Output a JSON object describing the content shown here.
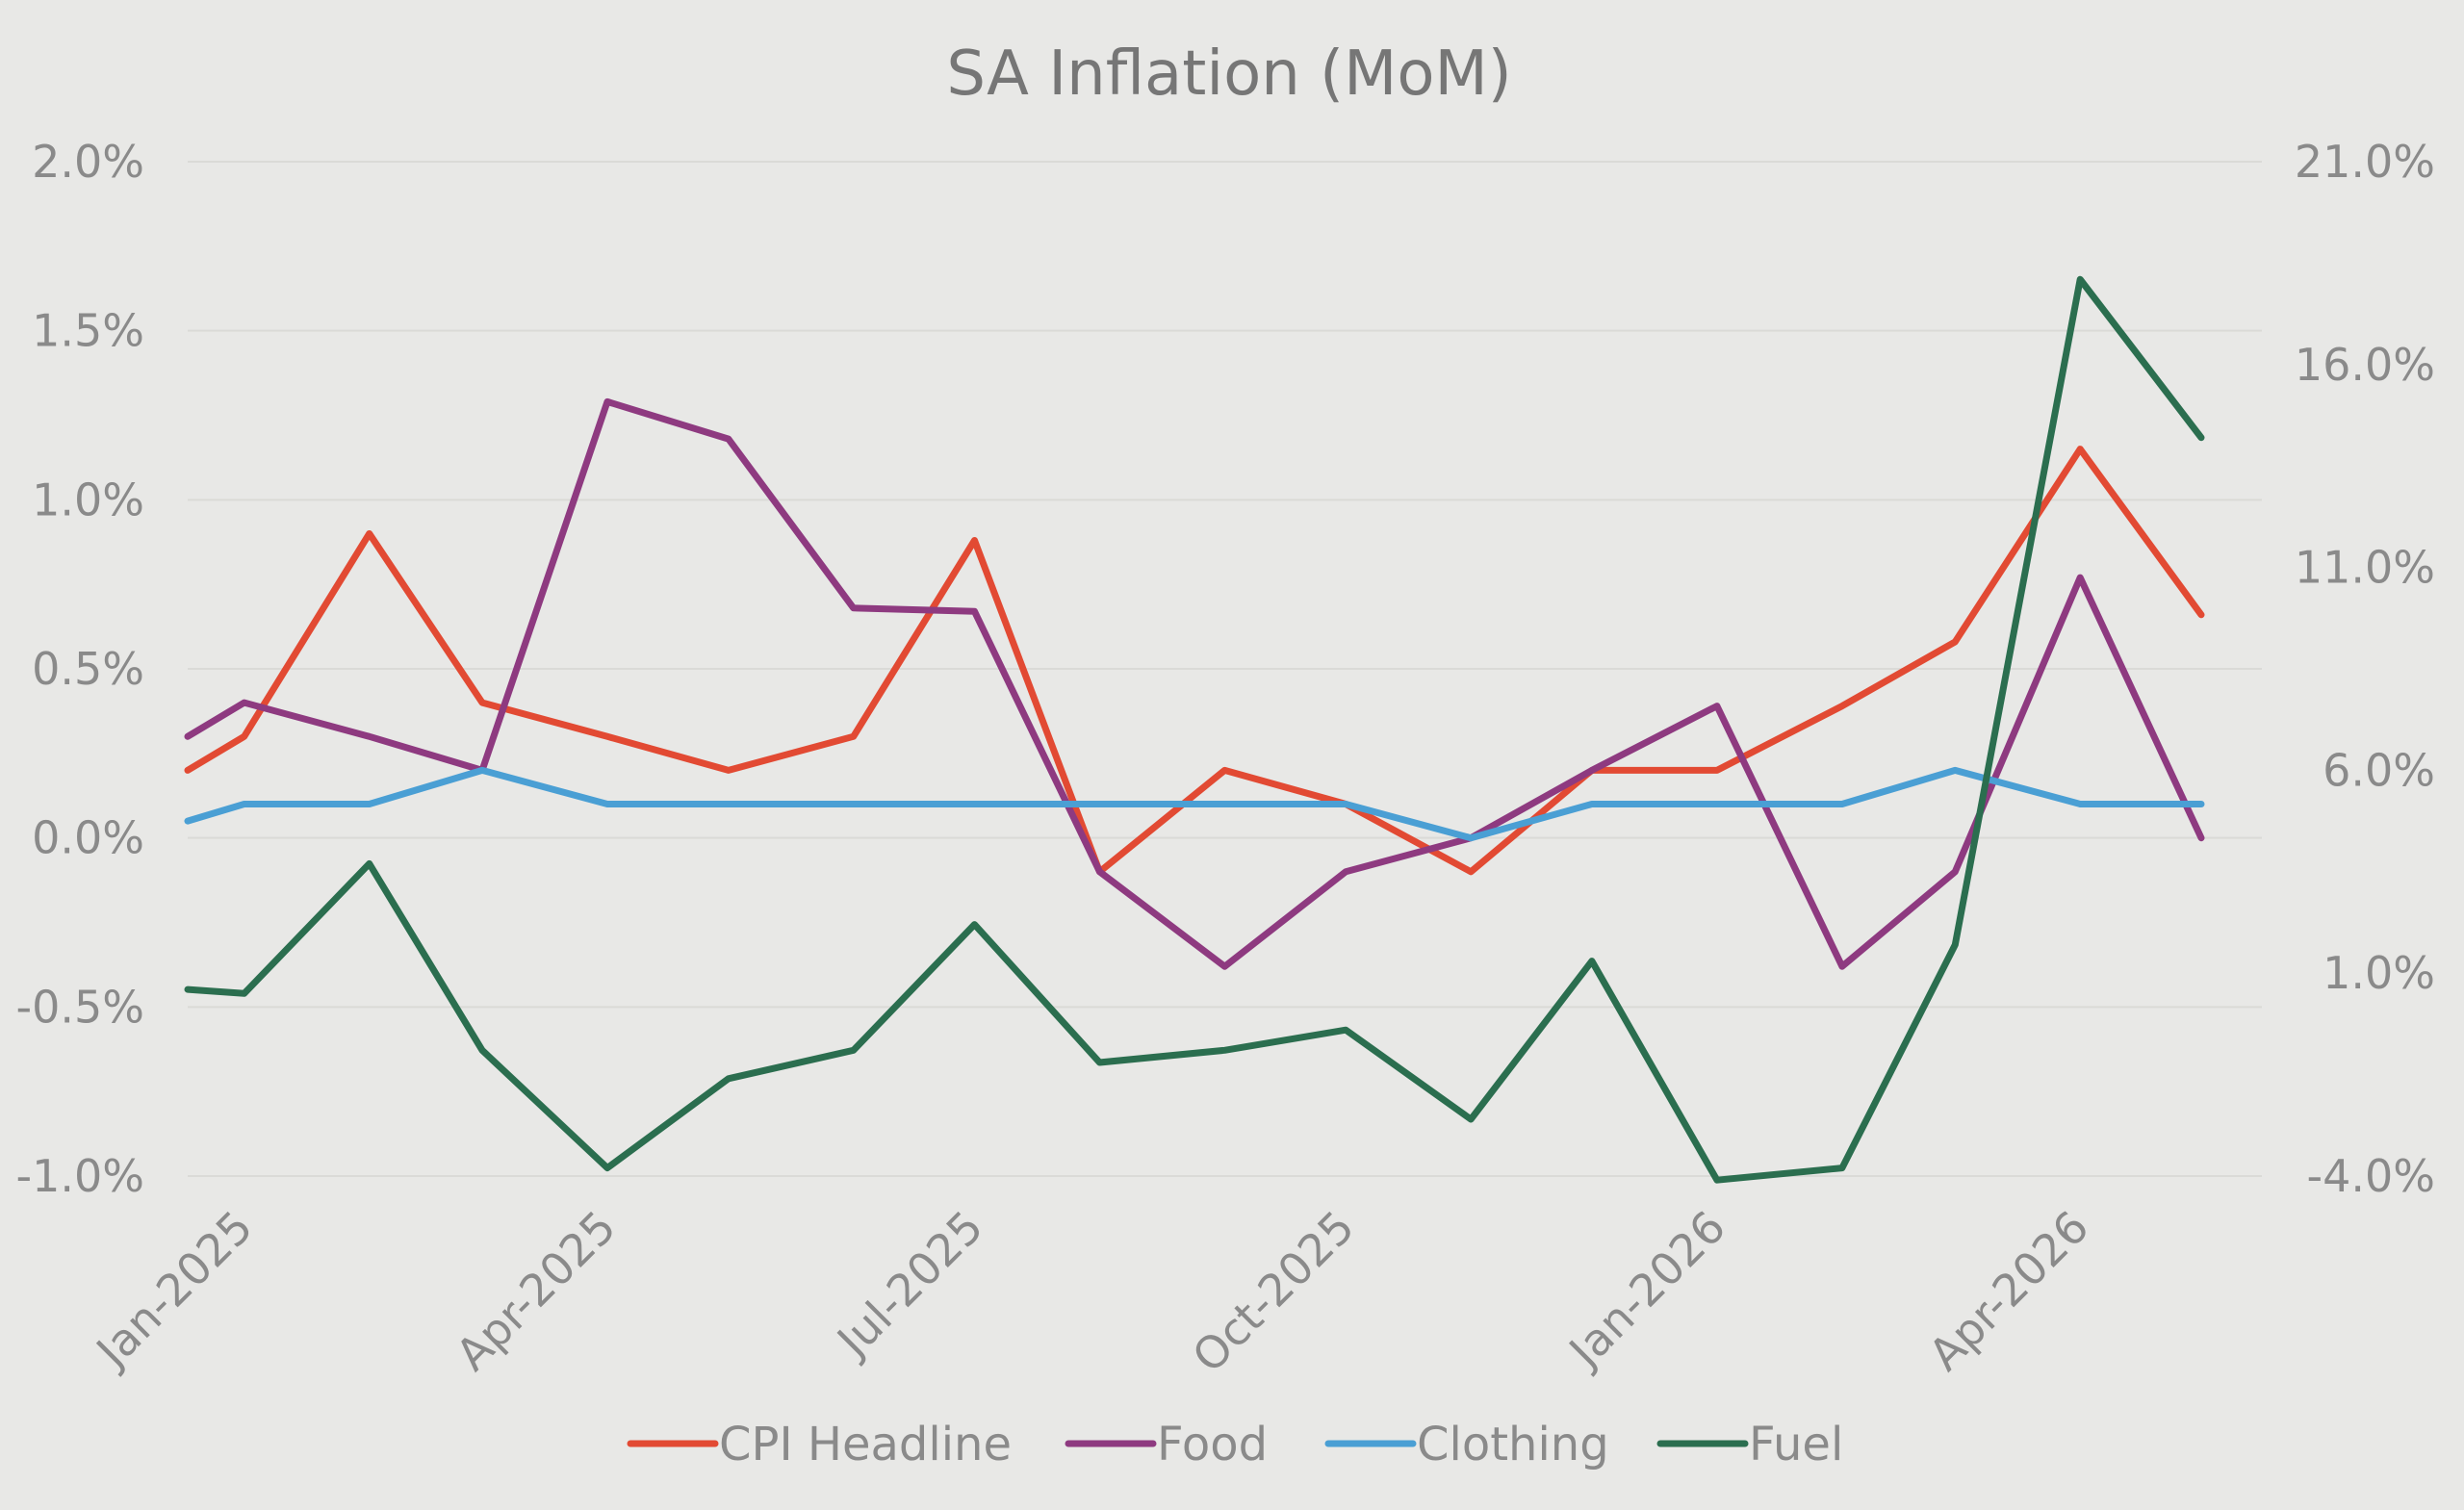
{
  "chart_data": {
    "type": "line",
    "title": "SA Inflation (MoM)",
    "x": [
      "2025-01-01",
      "2025-01-15",
      "2025-02-15",
      "2025-03-15",
      "2025-04-15",
      "2025-05-15",
      "2025-06-15",
      "2025-07-15",
      "2025-08-15",
      "2025-09-15",
      "2025-10-15",
      "2025-11-15",
      "2025-12-15",
      "2026-01-15",
      "2026-02-15",
      "2026-03-15",
      "2026-04-15",
      "2026-05-15"
    ],
    "x_tick_labels": [
      "Jan-2025",
      "Apr-2025",
      "Jul-2025",
      "Oct-2025",
      "Jan-2026",
      "Apr-2026"
    ],
    "x_tick_dates": [
      "2025-01-01",
      "2025-04-01",
      "2025-07-01",
      "2025-10-01",
      "2026-01-01",
      "2026-04-01"
    ],
    "y_left": {
      "ylim": [
        -1.0,
        2.0
      ],
      "tick_labels": [
        "2.0%",
        "1.5%",
        "1.0%",
        "0.5%",
        "0.0%",
        "-0.5%",
        "-1.0%"
      ]
    },
    "y_right": {
      "ylim": [
        -4.0,
        21.0
      ],
      "tick_labels": [
        "21.0%",
        "16.0%",
        "11.0%",
        "6.0%",
        "1.0%",
        "-4.0%"
      ]
    },
    "grid": true,
    "legend_position": "bottom",
    "series": [
      {
        "name": "CPI Headline",
        "axis": "left",
        "color": "#e24a33",
        "values": [
          0.2,
          0.3,
          0.9,
          0.4,
          0.3,
          0.2,
          0.3,
          0.88,
          -0.1,
          0.2,
          0.1,
          -0.1,
          0.2,
          0.2,
          0.39,
          0.58,
          1.15,
          0.66
        ]
      },
      {
        "name": "Food",
        "axis": "left",
        "color": "#8e3a80",
        "values": [
          0.3,
          0.4,
          0.3,
          0.2,
          1.29,
          1.18,
          0.68,
          0.67,
          -0.1,
          -0.38,
          -0.1,
          0.0,
          0.2,
          0.39,
          -0.38,
          -0.1,
          0.77,
          0.0
        ]
      },
      {
        "name": "Clothing",
        "axis": "left",
        "color": "#4a9fd4",
        "values": [
          0.05,
          0.1,
          0.1,
          0.2,
          0.1,
          0.1,
          0.1,
          0.1,
          0.1,
          0.1,
          0.1,
          0.0,
          0.1,
          0.1,
          0.1,
          0.2,
          0.1,
          0.1
        ]
      },
      {
        "name": "Fuel",
        "axis": "right",
        "color": "#2b6e4f",
        "values": [
          0.6,
          0.5,
          3.7,
          -0.9,
          -3.8,
          -1.6,
          -0.9,
          2.2,
          -1.2,
          -0.9,
          -0.4,
          -2.6,
          1.3,
          -4.1,
          -3.8,
          1.7,
          18.1,
          14.2
        ]
      }
    ]
  }
}
